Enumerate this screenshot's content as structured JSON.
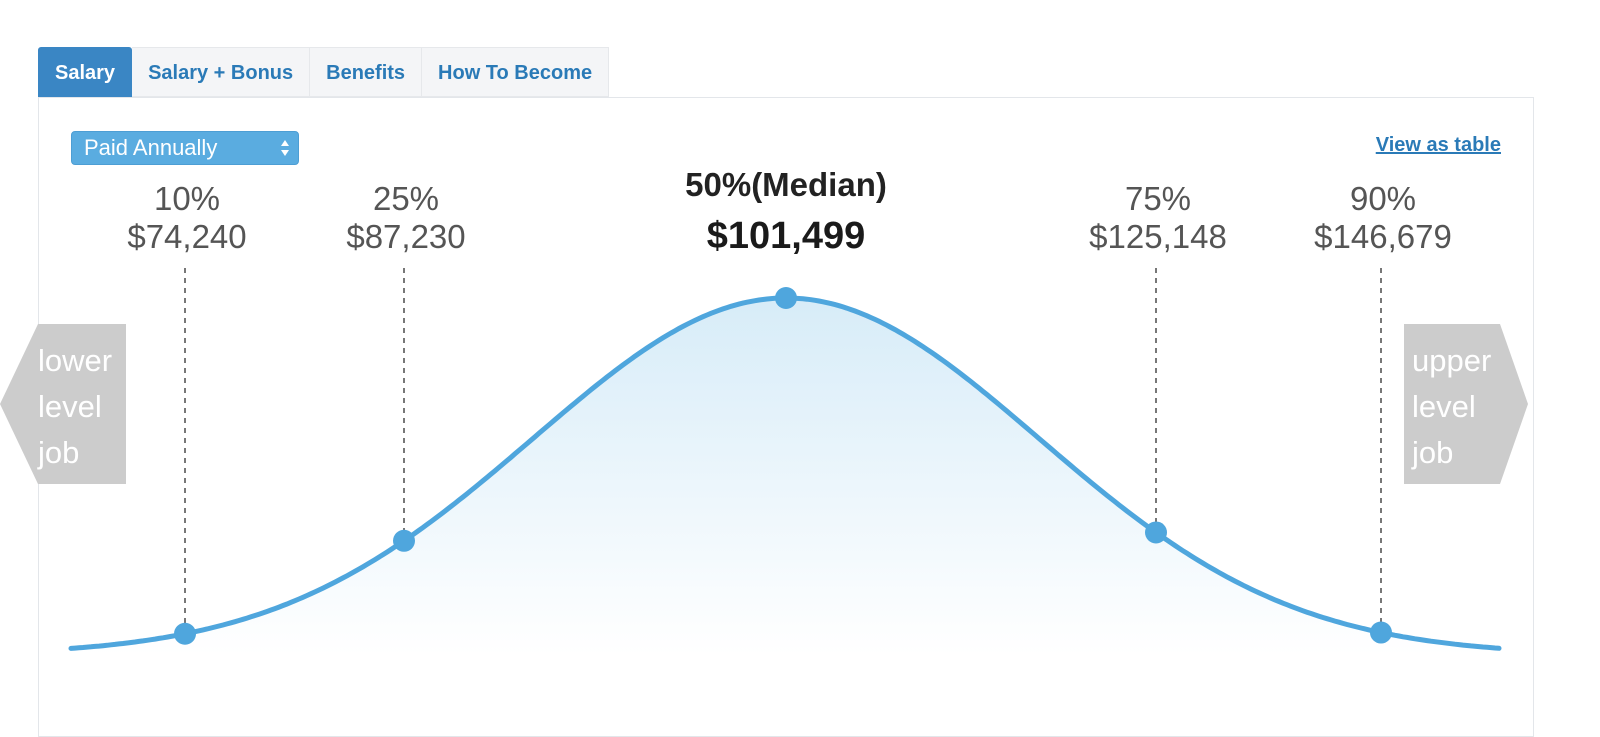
{
  "tabs": [
    {
      "label": "Salary",
      "active": true
    },
    {
      "label": "Salary + Bonus",
      "active": false
    },
    {
      "label": "Benefits",
      "active": false
    },
    {
      "label": "How To Become",
      "active": false
    }
  ],
  "pay_period": {
    "selected": "Paid Annually"
  },
  "view_as_table": "View as table",
  "lower_level": "lower\nlevel\njob",
  "upper_level": "upper\nlevel\njob",
  "colors": {
    "accent": "#4fa6dd",
    "tab_active": "#3a86c4",
    "link": "#2a7ab7",
    "side_arrow": "#cccccc"
  },
  "chart_data": {
    "type": "area",
    "title": "",
    "xlabel": "",
    "ylabel": "",
    "grid": false,
    "series": [
      {
        "values": [
          {
            "percentile": "10%",
            "value": 74240,
            "label": "$74,240"
          },
          {
            "percentile": "25%",
            "value": 87230,
            "label": "$87,230"
          },
          {
            "percentile": "50%(Median)",
            "value": 101499,
            "label": "$101,499",
            "highlight": true
          },
          {
            "percentile": "75%",
            "value": 125148,
            "label": "$125,148"
          },
          {
            "percentile": "90%",
            "value": 146679,
            "label": "$146,679"
          }
        ]
      }
    ]
  }
}
